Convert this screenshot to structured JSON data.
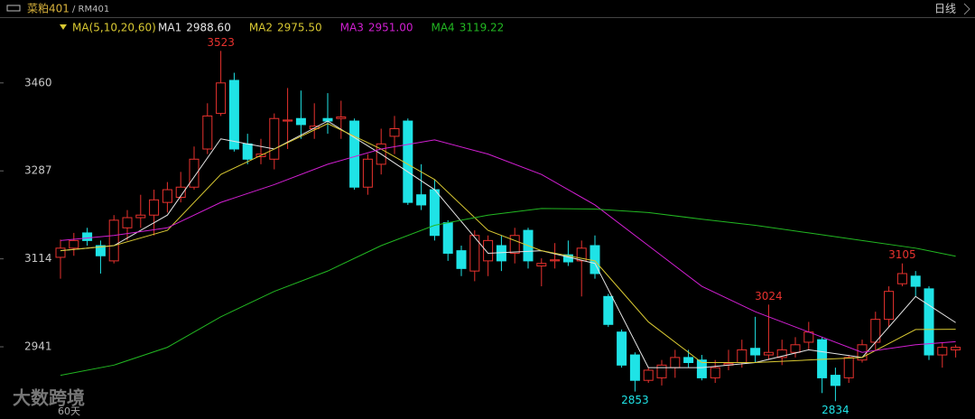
{
  "header": {
    "symbol": "菜粕401",
    "code": "/ RM401",
    "period": "日线"
  },
  "watermark": "大数跨境",
  "footer_note": "60天",
  "chart_data": {
    "type": "candlestick",
    "indicator": "MA(5,10,20,60)",
    "ylim": [
      2799,
      3584
    ],
    "yticks": [
      2941,
      3114,
      3287,
      3460
    ],
    "up_color": "#e8322e",
    "down_color": "#1fe3e6",
    "open": [
      3117,
      3135,
      3165,
      3140,
      3110,
      3175,
      3195,
      3200,
      3225,
      3235,
      3255,
      3330,
      3400,
      3465,
      3340,
      3315,
      3310,
      3385,
      3390,
      3370,
      3390,
      3390,
      3385,
      3255,
      3300,
      3355,
      3385,
      3240,
      3250,
      3185,
      3130,
      3090,
      3110,
      3140,
      3125,
      3170,
      3100,
      3110,
      3122,
      3110,
      3140,
      3040,
      2970,
      2925,
      2875,
      2880,
      2900,
      2920,
      2915,
      2880,
      2905,
      2910,
      2938,
      2925,
      2920,
      2930,
      2950,
      2955,
      2885,
      2880,
      2915,
      2950,
      2995,
      3065,
      3080,
      3055,
      2925,
      2935
    ],
    "high": [
      3152,
      3165,
      3175,
      3150,
      3200,
      3210,
      3240,
      3250,
      3265,
      3285,
      3335,
      3420,
      3523,
      3480,
      3360,
      3350,
      3400,
      3450,
      3445,
      3420,
      3440,
      3425,
      3390,
      3320,
      3370,
      3395,
      3390,
      3300,
      3270,
      3190,
      3140,
      3170,
      3160,
      3160,
      3175,
      3175,
      3115,
      3145,
      3150,
      3150,
      3160,
      3045,
      2975,
      2930,
      2900,
      2915,
      2935,
      2935,
      2925,
      2915,
      2935,
      2955,
      3000,
      3024,
      2955,
      2960,
      2990,
      2960,
      2900,
      2925,
      2955,
      3010,
      3060,
      3105,
      3090,
      3060,
      2950,
      2945
    ],
    "low": [
      3075,
      3120,
      3140,
      3085,
      3105,
      3150,
      3175,
      3160,
      3205,
      3225,
      3250,
      3320,
      3395,
      3325,
      3300,
      3300,
      3290,
      3330,
      3350,
      3350,
      3360,
      3350,
      3250,
      3240,
      3280,
      3320,
      3220,
      3210,
      3150,
      3110,
      3080,
      3070,
      3080,
      3090,
      3105,
      3095,
      3060,
      3095,
      3100,
      3040,
      3075,
      2980,
      2900,
      2853,
      2870,
      2865,
      2880,
      2900,
      2875,
      2870,
      2895,
      2900,
      2910,
      2915,
      2905,
      2920,
      2935,
      2850,
      2834,
      2870,
      2910,
      2935,
      2980,
      3060,
      3040,
      2915,
      2900,
      2920
    ],
    "close": [
      3135,
      3150,
      3150,
      3120,
      3190,
      3195,
      3200,
      3230,
      3250,
      3255,
      3310,
      3395,
      3460,
      3330,
      3310,
      3320,
      3390,
      3387,
      3378,
      3375,
      3385,
      3393,
      3255,
      3310,
      3340,
      3370,
      3225,
      3220,
      3160,
      3125,
      3095,
      3160,
      3150,
      3110,
      3160,
      3110,
      3105,
      3112,
      3108,
      3135,
      3085,
      2985,
      2905,
      2875,
      2895,
      2905,
      2920,
      2910,
      2880,
      2900,
      2908,
      2935,
      2925,
      2930,
      2935,
      2945,
      2970,
      2880,
      2865,
      2920,
      2945,
      2995,
      3050,
      3085,
      3060,
      2925,
      2940,
      2940
    ],
    "labeled_highs": [
      12,
      53,
      63
    ],
    "labeled_lows": [
      43,
      58
    ],
    "series": [
      {
        "name": "MA1",
        "legend_value": "2988.60",
        "color": "#e6e6e6",
        "x": [
          0,
          4,
          8,
          12,
          16,
          20,
          24,
          28,
          32,
          36,
          40,
          44,
          48,
          52,
          56,
          60,
          64,
          67
        ],
        "values": [
          3130,
          3140,
          3200,
          3350,
          3330,
          3385,
          3320,
          3250,
          3125,
          3130,
          3105,
          2900,
          2900,
          2910,
          2935,
          2920,
          3040,
          2988.6
        ]
      },
      {
        "name": "MA2",
        "legend_value": "2975.50",
        "color": "#d8c832",
        "x": [
          0,
          4,
          8,
          12,
          16,
          20,
          24,
          28,
          32,
          36,
          40,
          44,
          48,
          52,
          56,
          60,
          64,
          67
        ],
        "values": [
          3130,
          3140,
          3170,
          3280,
          3330,
          3380,
          3330,
          3270,
          3170,
          3130,
          3110,
          2990,
          2910,
          2910,
          2915,
          2920,
          2975,
          2975.5
        ]
      },
      {
        "name": "MA3",
        "legend_value": "2951.00",
        "color": "#d21fd2",
        "x": [
          0,
          4,
          8,
          12,
          16,
          20,
          24,
          28,
          32,
          36,
          40,
          44,
          48,
          52,
          56,
          60,
          64,
          67
        ],
        "values": [
          3150,
          3160,
          3175,
          3225,
          3260,
          3300,
          3330,
          3348,
          3320,
          3280,
          3220,
          3140,
          3060,
          3010,
          2970,
          2930,
          2945,
          2951
        ]
      },
      {
        "name": "MA4",
        "legend_value": "3119.22",
        "color": "#22b822",
        "x": [
          0,
          4,
          8,
          12,
          16,
          20,
          24,
          28,
          32,
          36,
          40,
          44,
          48,
          52,
          56,
          60,
          64,
          67
        ],
        "values": [
          2885,
          2905,
          2940,
          3000,
          3050,
          3090,
          3140,
          3180,
          3200,
          3213,
          3212,
          3205,
          3192,
          3180,
          3165,
          3150,
          3135,
          3119.22
        ]
      }
    ]
  }
}
